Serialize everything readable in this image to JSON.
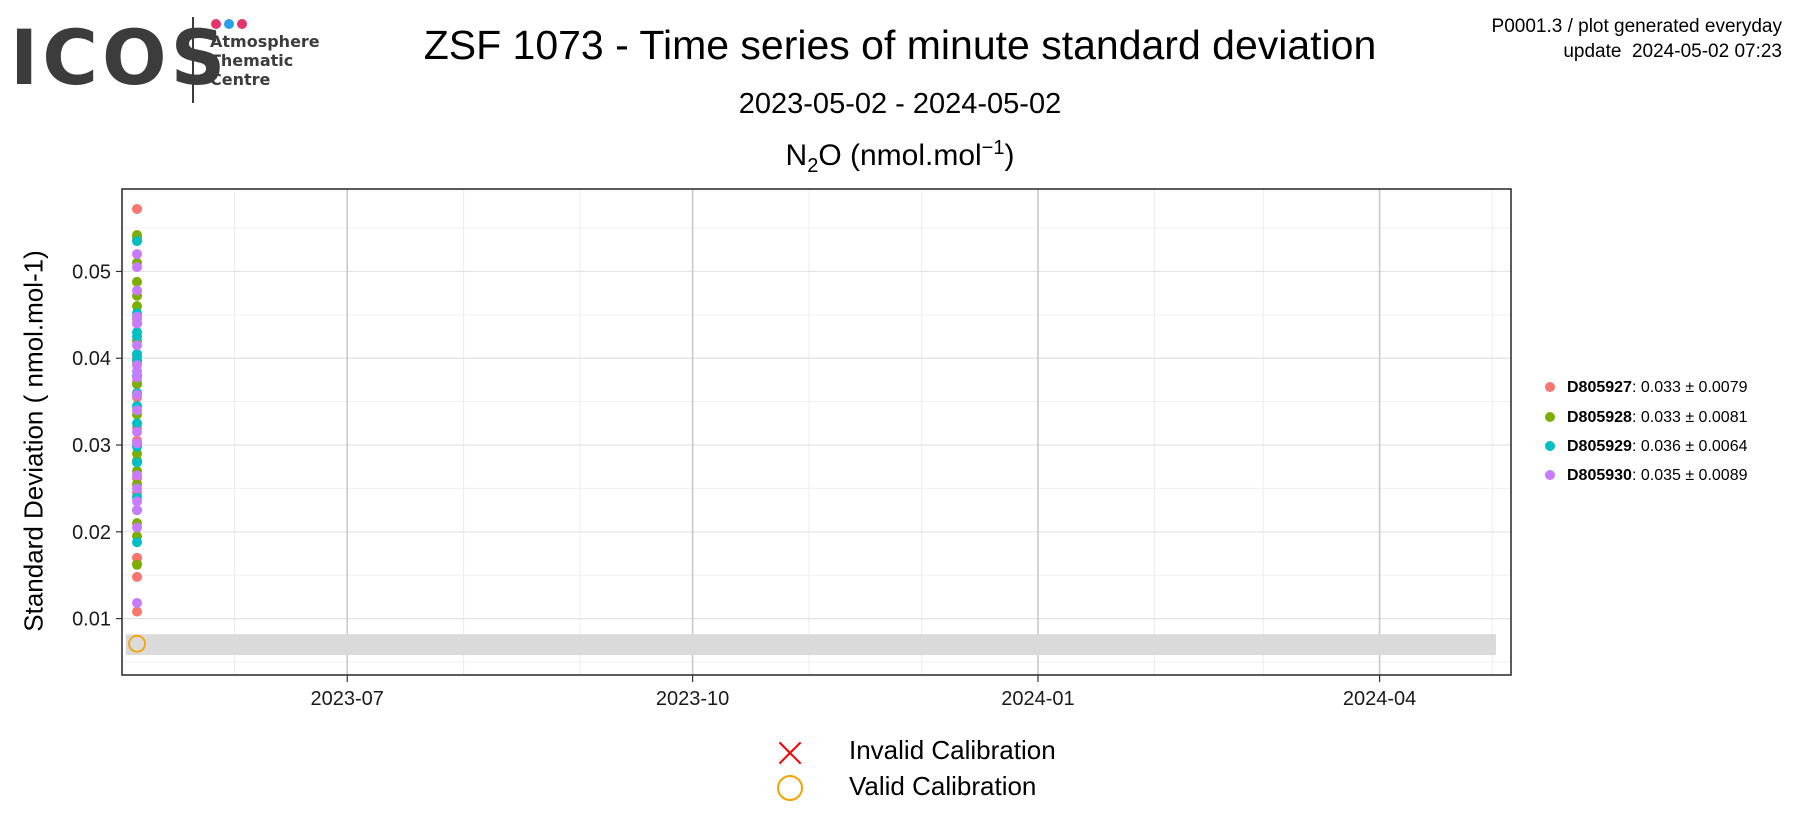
{
  "header": {
    "logo": {
      "word": "ICOS",
      "lines": [
        "Atmosphere",
        "Thematic",
        "Centre"
      ],
      "dot_colors": [
        "#e6336c",
        "#2aa0e6",
        "#e6336c"
      ]
    },
    "title": "ZSF 1073 - Time series of minute standard deviation",
    "subtitle": "2023-05-02 - 2024-05-02",
    "meta_line1": "P0001.3 / plot generated everyday",
    "meta_line2": "update  2024-05-02 07:23"
  },
  "panel": {
    "species": "N",
    "species_sub": "2",
    "species_tail": "O (nmol.mol",
    "sup": "−1",
    "close": ")"
  },
  "chart_data": {
    "type": "scatter",
    "title": "N2O (nmol.mol-1)",
    "ylabel": "Standard Deviation ( nmol.mol-1)",
    "xlabel": "",
    "x_type": "date",
    "xlim": [
      "2023-05-02",
      "2024-05-06"
    ],
    "ylim": [
      0.0035,
      0.0595
    ],
    "x_ticks": [
      "2023-07-01",
      "2023-10-01",
      "2024-01-01",
      "2024-04-01"
    ],
    "x_tick_labels": [
      "2023-07",
      "2023-10",
      "2024-01",
      "2024-04"
    ],
    "y_ticks": [
      0.01,
      0.02,
      0.03,
      0.04,
      0.05
    ],
    "y_tick_labels": [
      "0.01",
      "0.02",
      "0.03",
      "0.04",
      "0.05"
    ],
    "grid": true,
    "legend_position": "right",
    "reference_band": {
      "x": [
        "2023-05-03",
        "2024-05-02"
      ],
      "y": [
        0.0058,
        0.0082
      ],
      "color": "#dadada"
    },
    "series": [
      {
        "name": "D805927",
        "color": "#f8766d",
        "stats": ": 0.033 ± 0.0079",
        "x": [
          "2023-05-06",
          "2023-05-06",
          "2023-05-06",
          "2023-05-06",
          "2023-05-06",
          "2023-05-06",
          "2023-05-06",
          "2023-05-06",
          "2023-05-06",
          "2023-05-06",
          "2023-05-06",
          "2023-05-06",
          "2023-05-06"
        ],
        "y": [
          0.0572,
          0.0108,
          0.0148,
          0.0163,
          0.017,
          0.0245,
          0.0262,
          0.0305,
          0.032,
          0.0355,
          0.0372,
          0.0402,
          0.0445
        ]
      },
      {
        "name": "D805928",
        "color": "#7cae00",
        "stats": ": 0.033 ± 0.0081",
        "x": [
          "2023-05-06",
          "2023-05-06",
          "2023-05-06",
          "2023-05-06",
          "2023-05-06",
          "2023-05-06",
          "2023-05-06",
          "2023-05-06",
          "2023-05-06",
          "2023-05-06",
          "2023-05-06",
          "2023-05-06",
          "2023-05-06",
          "2023-05-06",
          "2023-05-06",
          "2023-05-06",
          "2023-05-06",
          "2023-05-06",
          "2023-05-06",
          "2023-05-06"
        ],
        "y": [
          0.0542,
          0.0538,
          0.051,
          0.0488,
          0.0472,
          0.046,
          0.044,
          0.042,
          0.0395,
          0.037,
          0.0335,
          0.03,
          0.029,
          0.0282,
          0.027,
          0.0255,
          0.0225,
          0.021,
          0.0195,
          0.0162
        ]
      },
      {
        "name": "D805929",
        "color": "#00bfc4",
        "stats": ": 0.036 ± 0.0064",
        "x": [
          "2023-05-06",
          "2023-05-06",
          "2023-05-06",
          "2023-05-06",
          "2023-05-06",
          "2023-05-06",
          "2023-05-06",
          "2023-05-06",
          "2023-05-06",
          "2023-05-06",
          "2023-05-06",
          "2023-05-06",
          "2023-05-06",
          "2023-05-06"
        ],
        "y": [
          0.0535,
          0.0452,
          0.043,
          0.0425,
          0.0405,
          0.0398,
          0.038,
          0.036,
          0.0345,
          0.0325,
          0.0298,
          0.028,
          0.024,
          0.0188
        ]
      },
      {
        "name": "D805930",
        "color": "#c77cff",
        "stats": ": 0.035 ± 0.0089",
        "x": [
          "2023-05-06",
          "2023-05-06",
          "2023-05-06",
          "2023-05-06",
          "2023-05-06",
          "2023-05-06",
          "2023-05-06",
          "2023-05-06",
          "2023-05-06",
          "2023-05-06",
          "2023-05-06",
          "2023-05-06",
          "2023-05-06",
          "2023-05-06",
          "2023-05-06",
          "2023-05-06",
          "2023-05-06",
          "2023-05-06",
          "2023-05-06"
        ],
        "y": [
          0.052,
          0.0505,
          0.0478,
          0.0448,
          0.044,
          0.0415,
          0.0392,
          0.0385,
          0.0378,
          0.0358,
          0.034,
          0.0315,
          0.0302,
          0.0265,
          0.025,
          0.0235,
          0.0225,
          0.0205,
          0.0118
        ]
      }
    ],
    "calibration_points": [
      {
        "status": "Valid Calibration",
        "x": "2023-05-06",
        "y": 0.0071
      }
    ]
  },
  "calibration_legend": [
    {
      "label": "Invalid Calibration",
      "icon": "cross-icon",
      "color": "#ff0000"
    },
    {
      "label": "Valid Calibration",
      "icon": "circle-icon",
      "color": "#f5a300"
    }
  ]
}
